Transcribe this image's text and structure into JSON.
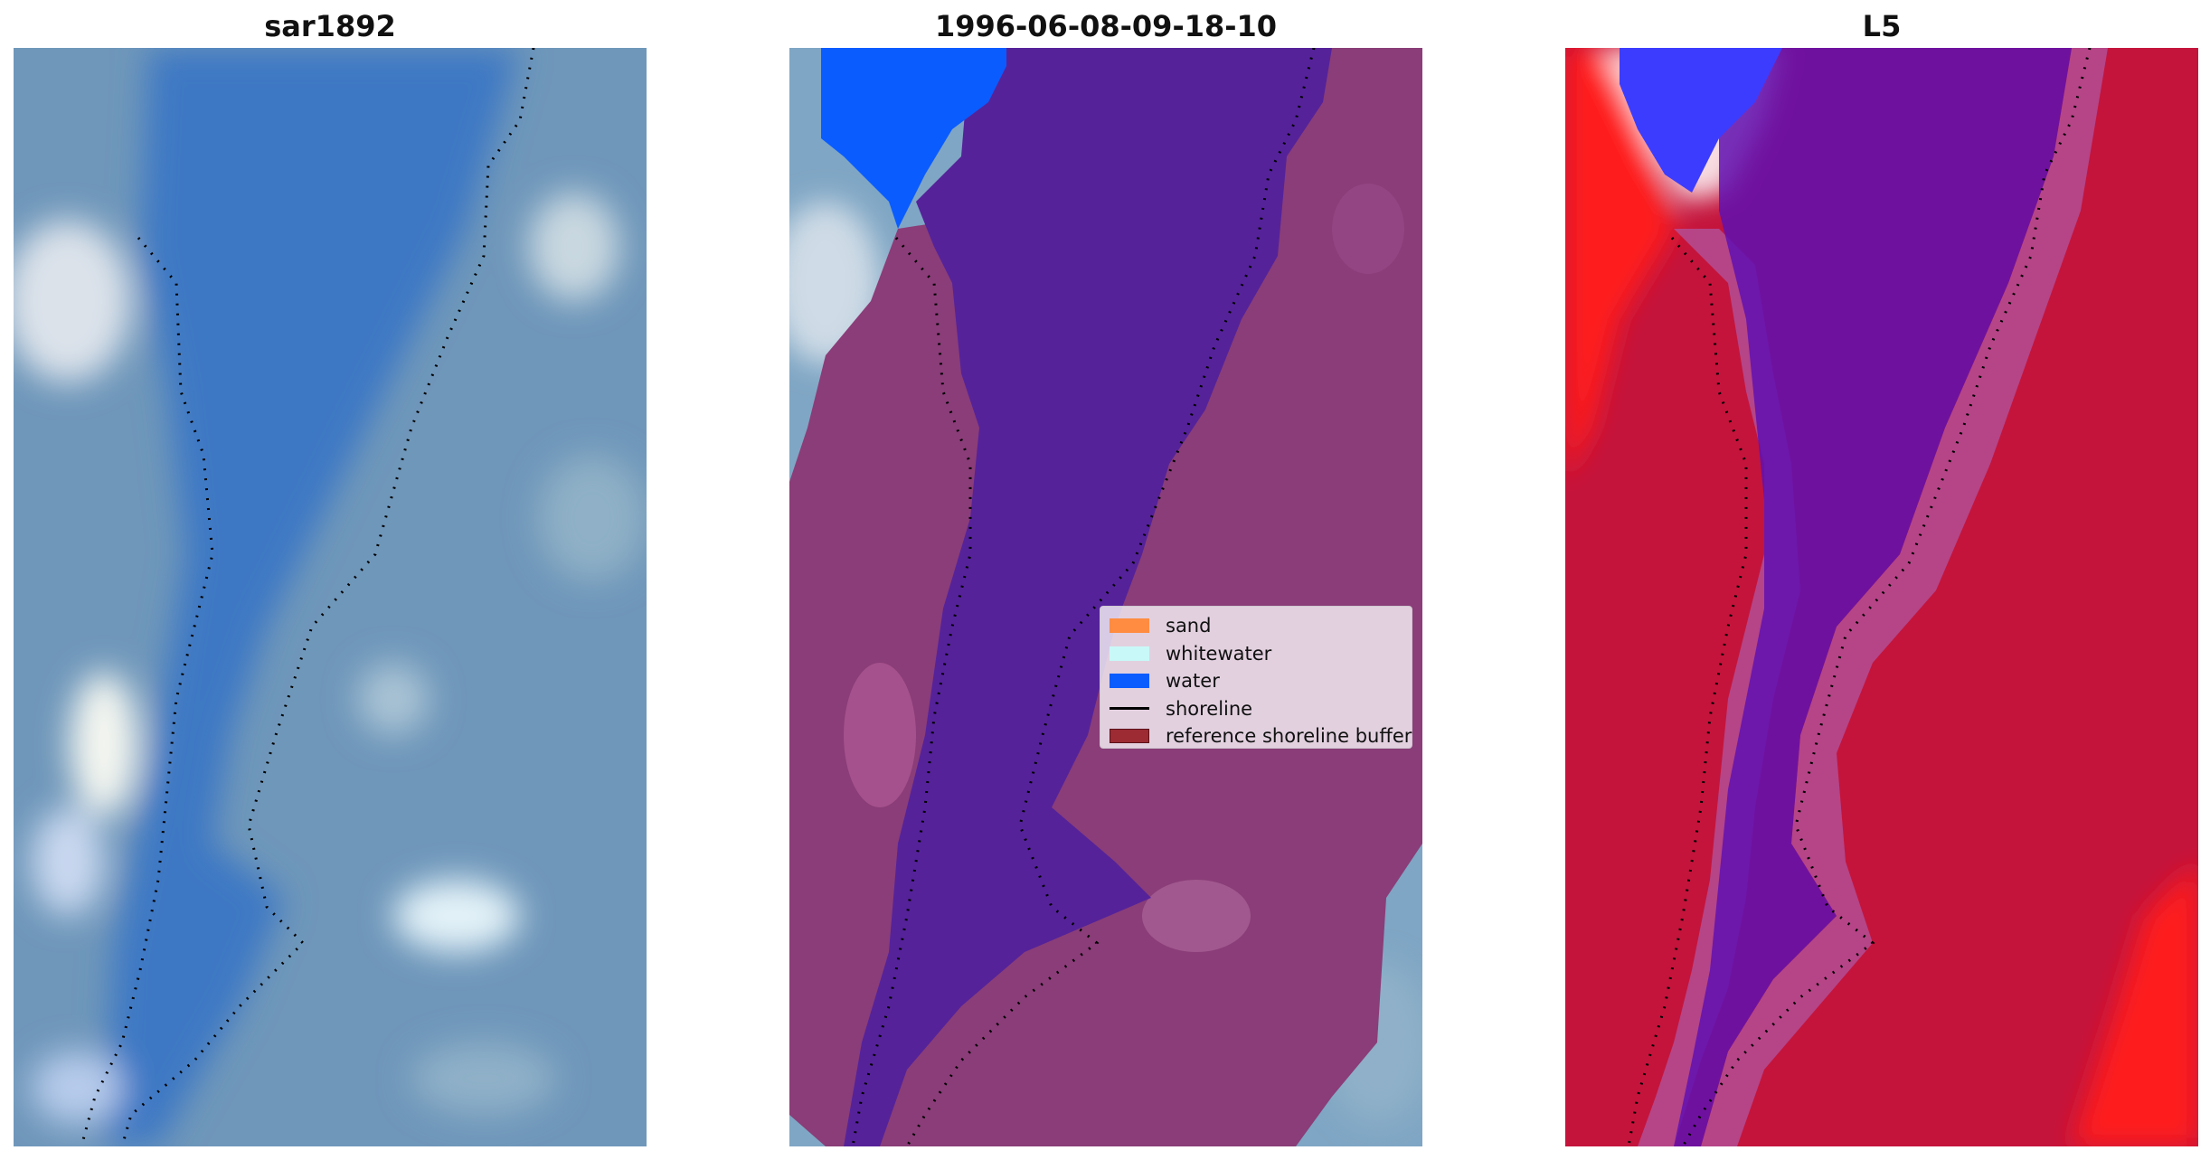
{
  "panels": [
    {
      "title": "sar1892"
    },
    {
      "title": "1996-06-08-09-18-10"
    },
    {
      "title": "L5"
    }
  ],
  "legend": {
    "items": [
      {
        "label": "sand",
        "color": "#ff8c40",
        "kind": "patch"
      },
      {
        "label": "whitewater",
        "color": "#c8f8f8",
        "kind": "patch"
      },
      {
        "label": "water",
        "color": "#0a5cff",
        "kind": "patch"
      },
      {
        "label": "shoreline",
        "color": "#000000",
        "kind": "line"
      },
      {
        "label": "reference shoreline buffer",
        "color": "#9c2b33",
        "kind": "patch-edge"
      }
    ]
  },
  "colors": {
    "rgb_water": "#3f7ac6",
    "rgb_land": "#6f97ba",
    "rgb_bright": "#dfe8f2",
    "overlay_water": "#55229a",
    "overlay_land": "#8a3d78",
    "overlay_bright_water": "#0a5cff",
    "index_land": "#c4143c",
    "index_water": "#6010b0",
    "index_red": "#ff1a1a",
    "index_blue": "#3c3cff"
  }
}
